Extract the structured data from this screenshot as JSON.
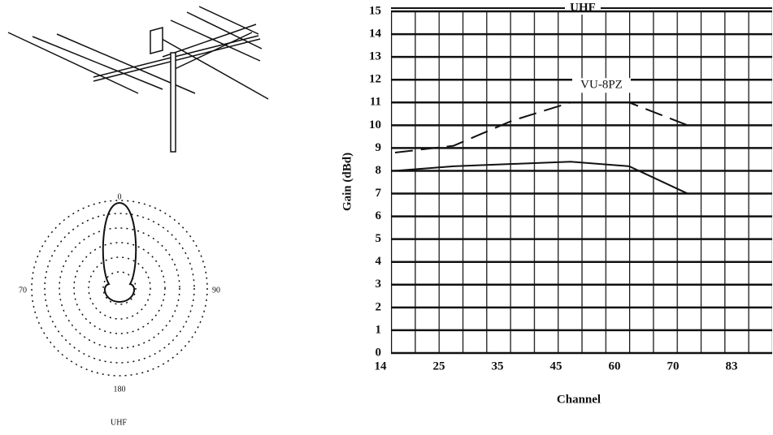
{
  "chart_data": {
    "type": "line",
    "title": "UHF",
    "x_label": "Channel",
    "y_label": "Gain (dBd)",
    "categories": [
      14,
      25,
      35,
      45,
      60,
      70,
      83
    ],
    "series": [
      {
        "name": "VU-8PZ",
        "color": "#111111",
        "dash": true,
        "values": [
          8.8,
          9.1,
          10.2,
          11.0,
          11.0,
          10.0,
          null
        ]
      },
      {
        "color": "#111111",
        "dash": false,
        "values": [
          8.0,
          8.2,
          8.3,
          8.4,
          8.2,
          7.0,
          null
        ]
      }
    ],
    "ylim": [
      0,
      15
    ],
    "yticks": [
      0,
      1,
      2,
      3,
      4,
      5,
      6,
      7,
      8,
      9,
      10,
      11,
      12,
      13,
      14,
      15
    ],
    "grid": true
  },
  "polar": {
    "labels": [
      "0",
      "70",
      "90",
      "180"
    ],
    "caption": "UHF"
  }
}
